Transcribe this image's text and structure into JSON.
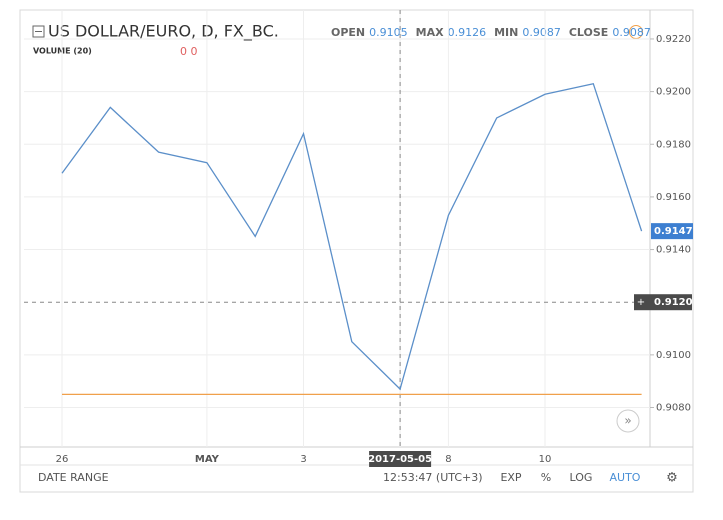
{
  "header": {
    "title": "US DOLLAR/EURO, D, FX_BC.",
    "volume_label": "VOLUME (20)",
    "volume_values": "0 0",
    "ohlc": [
      {
        "label": "OPEN",
        "value": "0.9105"
      },
      {
        "label": "MAX",
        "value": "0.9126"
      },
      {
        "label": "MIN",
        "value": "0.9087"
      },
      {
        "label": "CLOSE",
        "value": "0.9087"
      }
    ]
  },
  "chart_data": {
    "type": "line",
    "categories": [
      "26",
      null,
      null,
      "MAY",
      null,
      "3",
      null,
      "2017-05-05",
      "8",
      null,
      "10",
      null,
      null
    ],
    "values": [
      0.9169,
      0.9194,
      0.9177,
      0.9173,
      0.9145,
      0.9184,
      0.9105,
      0.9087,
      0.9153,
      0.919,
      0.9199,
      0.9203,
      0.9147
    ],
    "color": "#5b8fc9",
    "reference_line": {
      "value": 0.9085,
      "color": "#f0a04b"
    },
    "crosshair": {
      "category": "2017-05-05",
      "y": {
        "value": 0.912,
        "label": "0.9120"
      }
    },
    "ylim": [
      0.9065,
      0.9231
    ],
    "yticks": [
      {
        "value": 0.908,
        "label": "0.9080"
      },
      {
        "value": 0.91,
        "label": "0.9100"
      },
      {
        "value": 0.914,
        "label": "0.9140"
      },
      {
        "value": 0.916,
        "label": "0.9160"
      },
      {
        "value": 0.918,
        "label": "0.9180"
      },
      {
        "value": 0.92,
        "label": "0.9200"
      },
      {
        "value": 0.922,
        "label": "0.9220"
      }
    ],
    "grid": true
  },
  "footer": {
    "date_range": "DATE RANGE",
    "time": "12:53:47 (UTC+3)",
    "buttons": [
      "EXP",
      "%",
      "LOG",
      "AUTO"
    ]
  }
}
